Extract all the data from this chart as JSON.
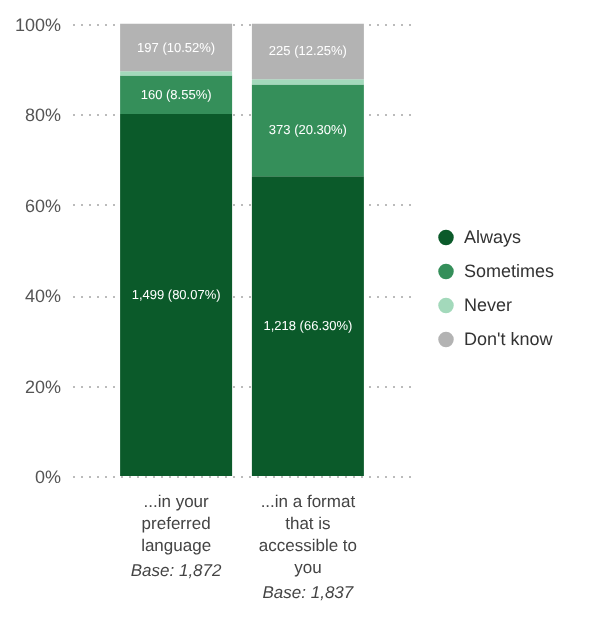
{
  "chart_data": {
    "type": "bar",
    "stacked": true,
    "categories": [
      "...in your preferred language",
      "...in a format that is accessible to you"
    ],
    "series": [
      {
        "name": "Always",
        "color": "#0b5a2a",
        "values": [
          80.07,
          66.3
        ],
        "value_labels": [
          "1,499 (80.07%)",
          "1,218 (66.30%)"
        ]
      },
      {
        "name": "Sometimes",
        "color": "#358f5a",
        "values": [
          8.55,
          20.3
        ],
        "value_labels": [
          "160 (8.55%)",
          "373 (20.30%)"
        ]
      },
      {
        "name": "Never",
        "color": "#a3d9bb",
        "values": [
          0.9,
          1.2
        ],
        "value_labels": [
          null,
          null
        ]
      },
      {
        "name": "Don't know",
        "color": "#b3b3b3",
        "values": [
          10.52,
          12.25
        ],
        "value_labels": [
          "197 (10.52%)",
          "225 (12.25%)"
        ]
      }
    ],
    "ylim": [
      0,
      100
    ],
    "yticks": [
      {
        "value": 0,
        "label": "0%"
      },
      {
        "value": 20,
        "label": "20%"
      },
      {
        "value": 40,
        "label": "40%"
      },
      {
        "value": 60,
        "label": "60%"
      },
      {
        "value": 80,
        "label": "80%"
      },
      {
        "value": 100,
        "label": "100%"
      }
    ],
    "grid": "y",
    "legend": "right",
    "annotations": [
      "Base: 1,872",
      "Base: 1,837"
    ]
  }
}
